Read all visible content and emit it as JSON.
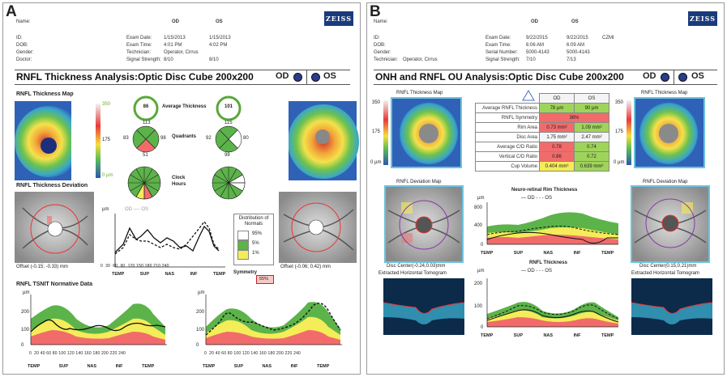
{
  "panelA": {
    "letter": "A",
    "logo": "ZEISS",
    "patient": {
      "name_label": "Name:",
      "id_label": "ID:",
      "dob_label": "DOB:",
      "gender_label": "Gender:",
      "doctor_label": "Doctor:"
    },
    "header": {
      "exam_date_label": "Exam Date:",
      "exam_time_label": "Exam Time:",
      "technician_label": "Technician:",
      "signal_label": "Signal Strength:",
      "od_col": "OD",
      "os_col": "OS",
      "od": {
        "date": "1/15/2013",
        "time": "4:01 PM",
        "tech": "Operator, Cirrus",
        "signal": "8/10"
      },
      "os": {
        "date": "1/15/2013",
        "time": "4:02 PM",
        "signal": "8/10"
      }
    },
    "title": "RNFL Thickness Analysis:Optic Disc Cube 200x200",
    "od_label": "OD",
    "os_label": "OS",
    "map_label": "RNFL Thickness Map",
    "avg_label": "Average Thickness",
    "avg_od": "86",
    "avg_os": "101",
    "quadrants_label": "Quadrants",
    "quad_od": [
      "113",
      "98",
      "51",
      "83"
    ],
    "quad_os": [
      "115",
      "98",
      "92",
      "80"
    ],
    "clock_label": "Clock Hours",
    "scale": [
      "350",
      "175",
      "0 µm"
    ],
    "deviation_label": "RNFL Thickness Deviation",
    "offset_od": "Offset (-0.15; -0.33) mm",
    "offset_os": "Offset (-0.06; 0.42) mm",
    "um": "µm",
    "legend_top": "OD ---- OS",
    "distribution_title": "Distribution of Normals",
    "distribution": [
      "95%",
      "5%",
      "1%"
    ],
    "symmetry_label": "Symmetry",
    "symmetry_value": "55%",
    "tsnit_label": "RNFL TSNIT Normative Data",
    "sector_labels": [
      "TEMP",
      "SUP",
      "NAS",
      "INF",
      "TEMP"
    ],
    "y_ticks": [
      "200",
      "100",
      "0"
    ],
    "x_ticks": [
      "0",
      "20",
      "40",
      "60",
      "80",
      "100",
      "120",
      "140",
      "160",
      "180",
      "200",
      "220",
      "240"
    ]
  },
  "panelB": {
    "letter": "B",
    "logo": "ZEISS",
    "patient": {
      "name_label": "Name:",
      "id_label": "ID:",
      "dob_label": "DOB:",
      "gender_label": "Gender:",
      "tech_label": "Technician:",
      "tech_value": "Operator, Cirrus"
    },
    "header": {
      "exam_date_label": "Exam Date:",
      "exam_time_label": "Exam Time:",
      "serial_label": "Serial Number:",
      "signal_label": "Signal Strength:",
      "od_col": "OD",
      "os_col": "OS",
      "od": {
        "date": "9/22/2015",
        "time": "6:06 AM",
        "serial": "5000-4143",
        "signal": "7/10"
      },
      "os": {
        "date": "9/22/2015",
        "time": "6:09 AM",
        "serial": "5000-4143",
        "signal": "7/13"
      },
      "model": "CZMI"
    },
    "title": "ONH and RNFL OU Analysis:Optic Disc Cube 200x200",
    "od_label": "OD",
    "os_label": "OS",
    "map_label": "RNFL Thickness Map",
    "scale": [
      "350",
      "175",
      "0 µm"
    ],
    "params_header": {
      "od": "OD",
      "os": "OS"
    },
    "params": [
      {
        "k": "Average RNFL Thickness",
        "od": "78 µm",
        "os": "90 µm"
      },
      {
        "k": "RNFL Symmetry",
        "both": "36%"
      },
      {
        "k": "Rim Area",
        "od": "0.73 mm²",
        "os": "1.09 mm²"
      },
      {
        "k": "Disc Area",
        "od": "1.75 mm²",
        "os": "2.47 mm²"
      },
      {
        "k": "Average C/D Ratio",
        "od": "0.78",
        "os": "0.74"
      },
      {
        "k": "Vertical C/D Ratio",
        "od": "0.86",
        "os": "0.72"
      },
      {
        "k": "Cup Volume",
        "od": "0.404 mm³",
        "os": "0.639 mm³"
      }
    ],
    "deviation_label": "RNFL Deviation Map",
    "center_od": "Disc Center(-0.24,0.03)mm",
    "center_os": "Disc Center(0.15,0.21)mm",
    "tomogram_label": "Extracted Horizontal Tomogram",
    "rim_label": "Neuro-retinal Rim Thickness",
    "rnfl_label": "RNFL Thickness",
    "um": "µm",
    "legend": "— OD - - - OS",
    "sector_labels": [
      "TEMP",
      "SUP",
      "NAS",
      "INF",
      "TEMP"
    ],
    "rim_ticks": [
      "800",
      "400",
      "0"
    ],
    "rnfl_ticks": [
      "200",
      "100",
      "0"
    ]
  }
}
